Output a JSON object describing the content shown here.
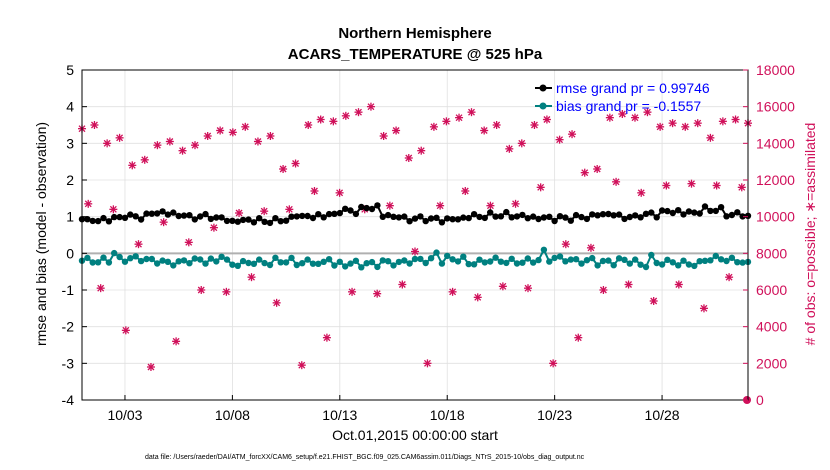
{
  "chart_data": {
    "type": "line",
    "title_line1": "Northern Hemisphere",
    "title_line2": "ACARS_TEMPERATURE @ 525 hPa",
    "xlabel": "Oct.01,2015 00:00:00 start",
    "ylabel_left": "rmse and bias (model - observation)",
    "ylabel_right": "# of obs: o=possible; ∗=assimilated",
    "ylim_left": [
      -4,
      5
    ],
    "ylim_right": [
      0,
      18000
    ],
    "xlim_days": [
      1,
      32
    ],
    "yticks_left": [
      "-4",
      "-3",
      "-2",
      "-1",
      "0",
      "1",
      "2",
      "3",
      "4",
      "5"
    ],
    "yticks_right": [
      "0",
      "2000",
      "4000",
      "6000",
      "8000",
      "10000",
      "12000",
      "14000",
      "16000",
      "18000"
    ],
    "xticks": [
      {
        "day": 3,
        "label": "10/03"
      },
      {
        "day": 8,
        "label": "10/08"
      },
      {
        "day": 13,
        "label": "10/13"
      },
      {
        "day": 18,
        "label": "10/18"
      },
      {
        "day": 23,
        "label": "10/23"
      },
      {
        "day": 28,
        "label": "10/28"
      }
    ],
    "legend": [
      {
        "label": "rmse grand pr = 0.99746",
        "color": "#000000"
      },
      {
        "label": "bias grand pr = -0.1557",
        "color": "#008080"
      }
    ],
    "footnote": "data file: /Users/raeder/DAI/ATM_forcXX/CAM6_setup/f.e21.FHIST_BGC.f09_025.CAM6assim.011/Diags_NTrS_2015-10/obs_diag_output.nc",
    "colors": {
      "rmse": "#000000",
      "bias": "#008080",
      "obs": "#d0105a",
      "zero_line": "#b0b0b0"
    },
    "obs_counts_cycle": [
      [
        14800,
        10700,
        15000,
        6100
      ],
      [
        14000,
        10400,
        14300,
        3800
      ],
      [
        12800,
        8500,
        13100,
        1800
      ],
      [
        13900,
        9700,
        14100,
        3200
      ],
      [
        13600,
        8600,
        13900,
        6000
      ],
      [
        14400,
        9400,
        14700,
        5900
      ],
      [
        14600,
        10200,
        14900,
        6700
      ],
      [
        14100,
        10300,
        14400,
        5300
      ],
      [
        12600,
        10400,
        12900,
        1900
      ],
      [
        15000,
        11400,
        15300,
        3400
      ],
      [
        15200,
        11300,
        15500,
        5900
      ],
      [
        15700,
        10400,
        16000,
        5800
      ],
      [
        14400,
        10600,
        14700,
        6300
      ],
      [
        13200,
        8100,
        13600,
        2000
      ],
      [
        14900,
        10600,
        15200,
        5900
      ],
      [
        15400,
        11400,
        15700,
        5600
      ],
      [
        14700,
        10600,
        15000,
        6200
      ],
      [
        13700,
        10700,
        14000,
        6100
      ],
      [
        15000,
        11600,
        15300,
        2000
      ],
      [
        14200,
        8500,
        14500,
        3400
      ],
      [
        12400,
        8300,
        12600,
        6000
      ],
      [
        15400,
        11900,
        15600,
        6300
      ],
      [
        15400,
        11300,
        15700,
        5400
      ],
      [
        14900,
        11700,
        15100,
        6300
      ],
      [
        14900,
        11800,
        15100,
        5000
      ],
      [
        14300,
        11700,
        15200,
        6700
      ],
      [
        15300,
        11600,
        15100,
        7500
      ]
    ],
    "rmse_base": [
      0.9,
      0.95,
      1.0,
      1.1,
      1.05,
      1.0,
      0.95,
      0.9,
      0.88,
      0.92,
      1.0,
      1.05,
      1.15,
      1.25,
      1.0,
      0.95,
      0.92,
      0.95,
      1.0,
      1.05,
      1.0,
      0.98,
      0.95,
      1.0,
      1.05,
      1.0,
      1.05,
      1.15,
      1.1,
      1.2,
      1.05,
      1.0
    ],
    "bias_base": [
      -0.2,
      -0.18,
      -0.15,
      -0.2,
      -0.25,
      -0.2,
      -0.22,
      -0.28,
      -0.25,
      -0.2,
      -0.25,
      -0.3,
      -0.28,
      -0.3,
      -0.25,
      -0.2,
      -0.2,
      -0.15,
      -0.25,
      -0.2,
      -0.22,
      -0.18,
      -0.15,
      -0.2,
      -0.25,
      -0.2,
      -0.3,
      -0.25,
      -0.28,
      -0.15,
      -0.2,
      -0.3
    ]
  }
}
